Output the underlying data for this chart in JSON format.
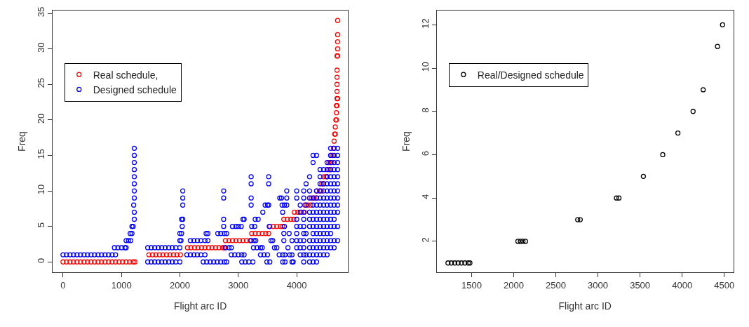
{
  "chart_data": [
    {
      "type": "scatter",
      "xlabel": "Flight arc ID",
      "ylabel": "Freq",
      "xlim": [
        -180,
        4880
      ],
      "ylim": [
        -1.46,
        35.4
      ],
      "xticks": [
        0,
        1000,
        2000,
        3000,
        4000
      ],
      "yticks": [
        0,
        5,
        10,
        15,
        20,
        25,
        30,
        35
      ],
      "legend": "top left",
      "marker": "circle",
      "series": [
        {
          "name": "Real schedule,",
          "color": "#ff0000",
          "x": [
            0,
            60,
            120,
            180,
            240,
            300,
            360,
            420,
            480,
            540,
            600,
            660,
            720,
            780,
            840,
            900,
            960,
            1020,
            1080,
            1140,
            1200,
            1230,
            1470,
            1530,
            1590,
            1650,
            1710,
            1770,
            1830,
            1890,
            1950,
            2010,
            2130,
            2190,
            2250,
            2310,
            2370,
            2430,
            2490,
            2550,
            2610,
            2670,
            2730,
            2760,
            2780,
            2840,
            2900,
            2960,
            3020,
            3080,
            3140,
            3200,
            3230,
            3290,
            3350,
            3410,
            3470,
            3520,
            3540,
            3600,
            3660,
            3720,
            3760,
            3780,
            3840,
            3900,
            3950,
            3960,
            4020,
            4080,
            4130,
            4140,
            4190,
            4240,
            4250,
            4300,
            4340,
            4340,
            4390,
            4420,
            4430,
            4460,
            4460,
            4500,
            4520,
            4550,
            4580,
            4550,
            4580,
            4600,
            4590,
            4620,
            4630,
            4640,
            4650,
            4660,
            4660,
            4670,
            4680,
            4680,
            4680,
            4690,
            4690,
            4700,
            4690,
            4690,
            4690,
            4690,
            4690,
            4700,
            4700,
            4700,
            4700,
            4700
          ],
          "values": [
            0,
            0,
            0,
            0,
            0,
            0,
            0,
            0,
            0,
            0,
            0,
            0,
            0,
            0,
            0,
            0,
            0,
            0,
            0,
            0,
            0,
            0,
            1,
            1,
            1,
            1,
            1,
            1,
            1,
            1,
            1,
            1,
            2,
            2,
            2,
            2,
            2,
            2,
            2,
            2,
            2,
            2,
            2,
            2,
            3,
            3,
            3,
            3,
            3,
            3,
            3,
            3,
            4,
            4,
            4,
            4,
            4,
            4,
            5,
            5,
            5,
            5,
            5,
            6,
            6,
            6,
            6,
            7,
            7,
            7,
            7,
            8,
            8,
            8,
            9,
            9,
            9,
            10,
            10,
            10,
            11,
            11,
            12,
            12,
            12,
            13,
            13,
            14,
            14,
            14,
            15,
            15,
            16,
            17,
            18,
            18,
            19,
            20,
            20,
            21,
            22,
            22,
            23,
            23,
            24,
            25,
            26,
            27,
            29,
            29,
            30,
            31,
            32,
            34
          ]
        },
        {
          "name": "Designed schedule",
          "color": "#0000ff",
          "x": [
            0,
            60,
            120,
            180,
            240,
            300,
            360,
            420,
            480,
            540,
            600,
            660,
            720,
            780,
            840,
            900,
            880,
            940,
            1000,
            1060,
            1080,
            1080,
            1120,
            1160,
            1150,
            1180,
            1180,
            1200,
            1220,
            1220,
            1210,
            1220,
            1220,
            1220,
            1220,
            1220,
            1220,
            1220,
            1220,
            1450,
            1510,
            1570,
            1630,
            1690,
            1750,
            1810,
            1870,
            1930,
            2000,
            1450,
            1510,
            1570,
            1630,
            1690,
            1750,
            1810,
            1870,
            1930,
            2000,
            2000,
            2020,
            2000,
            2030,
            2040,
            2030,
            2050,
            2050,
            2050,
            2050,
            2120,
            2180,
            2240,
            2300,
            2360,
            2430,
            2180,
            2240,
            2300,
            2360,
            2430,
            2480,
            2450,
            2480,
            2400,
            2460,
            2520,
            2580,
            2640,
            2700,
            2760,
            2800,
            2650,
            2700,
            2760,
            2800,
            2780,
            2840,
            2880,
            2750,
            2750,
            2750,
            2750,
            2880,
            2940,
            3000,
            3060,
            3100,
            2900,
            2960,
            3000,
            3050,
            3080,
            3100,
            3060,
            3120,
            3180,
            3250,
            3220,
            3270,
            3300,
            3260,
            3320,
            3380,
            3410,
            3220,
            3220,
            3220,
            3220,
            3230,
            3280,
            3290,
            3340,
            3380,
            3440,
            3500,
            3490,
            3540,
            3420,
            3460,
            3500,
            3520,
            3520,
            3520,
            3560,
            3590,
            3530,
            3620,
            3660,
            3700,
            3760,
            3800,
            3760,
            3800,
            3710,
            3740,
            3750,
            3790,
            3760,
            3790,
            3780,
            3780,
            3850,
            3830,
            3830,
            3830,
            3880,
            3920,
            3920,
            3940,
            3870,
            3920,
            4000,
            4000,
            4000,
            4000,
            4000,
            4000,
            4000,
            4060,
            4060,
            4060,
            4060,
            4060,
            4060,
            4120,
            4120,
            4120,
            4120,
            4120,
            4120,
            4120,
            4120,
            4120,
            4120,
            4160,
            4160,
            4160,
            4160,
            4220,
            4220,
            4220,
            4220,
            4220,
            4220,
            4220,
            4220,
            4220,
            4220,
            4280,
            4280,
            4280,
            4280,
            4280,
            4280,
            4280,
            4280,
            4280,
            4280,
            4280,
            4280,
            4340,
            4340,
            4340,
            4340,
            4340,
            4340,
            4340,
            4340,
            4340,
            4340,
            4340,
            4340,
            4400,
            4400,
            4400,
            4400,
            4400,
            4400,
            4400,
            4400,
            4400,
            4400,
            4400,
            4400,
            4400,
            4460,
            4460,
            4460,
            4460,
            4460,
            4460,
            4460,
            4460,
            4460,
            4460,
            4460,
            4460,
            4520,
            4520,
            4520,
            4520,
            4520,
            4520,
            4520,
            4520,
            4520,
            4520,
            4520,
            4520,
            4520,
            4520,
            4580,
            4580,
            4580,
            4580,
            4580,
            4580,
            4580,
            4580,
            4580,
            4580,
            4580,
            4580,
            4580,
            4580,
            4580,
            4640,
            4640,
            4640,
            4640,
            4640,
            4640,
            4640,
            4640,
            4640,
            4640,
            4640,
            4640,
            4640,
            4640,
            4700,
            4700,
            4700,
            4700,
            4700,
            4700,
            4700,
            4700,
            4700,
            4700,
            4700,
            4700
          ],
          "values": [
            1,
            1,
            1,
            1,
            1,
            1,
            1,
            1,
            1,
            1,
            1,
            1,
            1,
            1,
            1,
            1,
            2,
            2,
            2,
            2,
            2,
            3,
            3,
            3,
            4,
            4,
            5,
            5,
            6,
            7,
            8,
            9,
            10,
            11,
            12,
            13,
            14,
            15,
            16,
            0,
            0,
            0,
            0,
            0,
            0,
            0,
            0,
            0,
            0,
            2,
            2,
            2,
            2,
            2,
            2,
            2,
            2,
            2,
            2,
            3,
            3,
            4,
            4,
            5,
            6,
            6,
            8,
            9,
            10,
            1,
            1,
            1,
            1,
            1,
            1,
            3,
            3,
            3,
            3,
            3,
            3,
            4,
            4,
            0,
            0,
            0,
            0,
            0,
            0,
            0,
            0,
            4,
            4,
            4,
            4,
            2,
            2,
            2,
            5,
            6,
            9,
            10,
            1,
            1,
            1,
            1,
            1,
            5,
            5,
            5,
            5,
            6,
            6,
            0,
            0,
            0,
            0,
            3,
            3,
            3,
            2,
            2,
            2,
            2,
            8,
            9,
            11,
            12,
            5,
            5,
            6,
            6,
            1,
            1,
            1,
            0,
            0,
            7,
            8,
            8,
            8,
            11,
            12,
            3,
            3,
            5,
            2,
            2,
            1,
            1,
            1,
            0,
            0,
            9,
            9,
            8,
            8,
            7,
            5,
            4,
            3,
            2,
            9,
            10,
            8,
            1,
            1,
            0,
            0,
            4,
            3,
            2,
            3,
            4,
            5,
            6,
            9,
            10,
            1,
            2,
            3,
            5,
            7,
            8,
            0,
            1,
            2,
            3,
            4,
            5,
            6,
            7,
            9,
            10,
            1,
            4,
            8,
            11,
            0,
            1,
            2,
            3,
            5,
            6,
            7,
            9,
            10,
            12,
            0,
            1,
            2,
            3,
            4,
            5,
            6,
            7,
            8,
            9,
            14,
            15,
            0,
            1,
            2,
            3,
            4,
            5,
            6,
            7,
            8,
            9,
            10,
            15,
            1,
            2,
            3,
            4,
            5,
            6,
            7,
            8,
            9,
            10,
            11,
            12,
            13,
            1,
            2,
            3,
            4,
            5,
            6,
            7,
            8,
            9,
            10,
            11,
            13,
            1,
            2,
            3,
            4,
            5,
            6,
            7,
            8,
            9,
            10,
            11,
            12,
            13,
            14,
            2,
            3,
            4,
            5,
            6,
            7,
            8,
            9,
            10,
            11,
            12,
            13,
            14,
            15,
            16,
            2,
            3,
            5,
            6,
            7,
            8,
            9,
            10,
            11,
            12,
            13,
            14,
            15,
            16,
            3,
            5,
            7,
            8,
            9,
            10,
            11,
            12,
            13,
            14,
            15,
            16
          ]
        }
      ]
    },
    {
      "type": "scatter",
      "xlabel": "Flight arc ID",
      "ylabel": "Freq",
      "xlim": [
        1088,
        4607
      ],
      "ylim": [
        0.57,
        12.66
      ],
      "xticks": [
        1500,
        2000,
        2500,
        3000,
        3500,
        4000,
        4500
      ],
      "yticks": [
        2,
        4,
        6,
        8,
        10,
        12
      ],
      "legend": "top left",
      "marker": "circle",
      "series": [
        {
          "name": "Real/Designed schedule",
          "color": "#000000",
          "x": [
            1220,
            1260,
            1300,
            1340,
            1380,
            1420,
            1460,
            1480,
            2050,
            2080,
            2110,
            2140,
            2760,
            2790,
            3220,
            3250,
            3540,
            3770,
            3950,
            4130,
            4250,
            4420,
            4480
          ],
          "values": [
            1,
            1,
            1,
            1,
            1,
            1,
            1,
            1,
            2,
            2,
            2,
            2,
            3,
            3,
            4,
            4,
            5,
            6,
            7,
            8,
            9,
            11,
            12
          ]
        }
      ]
    }
  ]
}
